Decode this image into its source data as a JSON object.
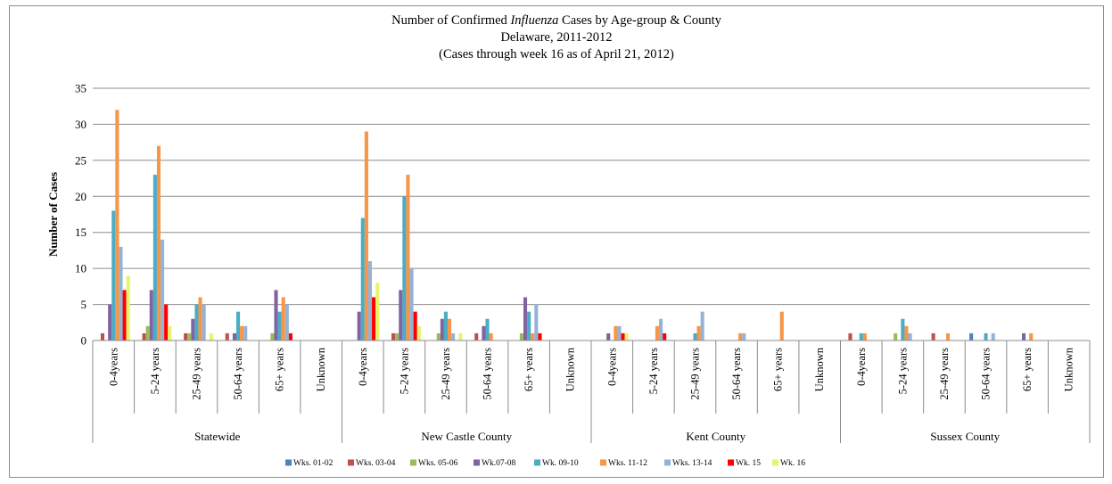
{
  "chart_data": {
    "type": "bar",
    "title_line1_prefix": "Number of Confirmed ",
    "title_line1_italic": "Influenza",
    "title_line1_suffix": " Cases by Age-group & County",
    "title_line2": "Delaware, 2011-2012",
    "title_line3": "(Cases through week 16 as of April 21, 2012)",
    "ylabel": "Number of Cases",
    "ylim": [
      0,
      35
    ],
    "yticks": [
      0,
      5,
      10,
      15,
      20,
      25,
      30,
      35
    ],
    "grid": true,
    "legend_position": "bottom",
    "groups": [
      "Statewide",
      "New Castle County",
      "Kent County",
      "Sussex County"
    ],
    "age_groups": [
      "0-4years",
      "5-24 years",
      "25-49 years",
      "50-64 years",
      "65+ years",
      "Unknown"
    ],
    "categories": [
      "Statewide 0-4years",
      "Statewide 5-24 years",
      "Statewide 25-49 years",
      "Statewide 50-64 years",
      "Statewide 65+ years",
      "Statewide Unknown",
      "New Castle County 0-4years",
      "New Castle County 5-24 years",
      "New Castle County 25-49 years",
      "New Castle County 50-64 years",
      "New Castle County 65+ years",
      "New Castle County Unknown",
      "Kent County 0-4years",
      "Kent County 5-24 years",
      "Kent County 25-49 years",
      "Kent County 50-64 years",
      "Kent County 65+ years",
      "Kent County Unknown",
      "Sussex County 0-4years",
      "Sussex County 5-24 years",
      "Sussex County 25-49 years",
      "Sussex County 50-64 years",
      "Sussex County 65+ years",
      "Sussex County Unknown"
    ],
    "series": [
      {
        "name": "Wks. 01-02",
        "color": "#4f81bd",
        "values": [
          0,
          0,
          0,
          0,
          0,
          0,
          0,
          0,
          0,
          0,
          0,
          0,
          0,
          0,
          0,
          0,
          0,
          0,
          0,
          0,
          0,
          1,
          0,
          0
        ]
      },
      {
        "name": "Wks. 03-04",
        "color": "#c0504d",
        "values": [
          1,
          1,
          1,
          1,
          0,
          0,
          0,
          1,
          0,
          1,
          0,
          0,
          0,
          0,
          0,
          0,
          0,
          0,
          1,
          0,
          1,
          0,
          0,
          0
        ]
      },
      {
        "name": "Wks. 05-06",
        "color": "#9bbb59",
        "values": [
          0,
          2,
          1,
          0,
          1,
          0,
          0,
          1,
          1,
          0,
          1,
          0,
          0,
          0,
          0,
          0,
          0,
          0,
          0,
          1,
          0,
          0,
          0,
          0
        ]
      },
      {
        "name": "Wk.07-08",
        "color": "#8064a2",
        "values": [
          5,
          7,
          3,
          1,
          7,
          0,
          4,
          7,
          3,
          2,
          6,
          0,
          1,
          0,
          0,
          0,
          0,
          0,
          0,
          0,
          0,
          0,
          1,
          0
        ]
      },
      {
        "name": "Wk. 09-10",
        "color": "#4bacc6",
        "values": [
          18,
          23,
          5,
          4,
          4,
          0,
          17,
          20,
          4,
          3,
          4,
          0,
          0,
          0,
          1,
          0,
          0,
          0,
          1,
          3,
          0,
          1,
          0,
          0
        ]
      },
      {
        "name": "Wks. 11-12",
        "color": "#f79646",
        "values": [
          32,
          27,
          6,
          2,
          6,
          0,
          29,
          23,
          3,
          1,
          1,
          0,
          2,
          2,
          2,
          1,
          4,
          0,
          1,
          2,
          1,
          0,
          1,
          0
        ]
      },
      {
        "name": "Wks. 13-14",
        "color": "#95b3d7",
        "values": [
          13,
          14,
          5,
          2,
          5,
          0,
          11,
          10,
          1,
          0,
          5,
          0,
          2,
          3,
          4,
          1,
          0,
          0,
          0,
          1,
          0,
          1,
          0,
          0
        ]
      },
      {
        "name": "Wk. 15",
        "color": "#ff0000",
        "values": [
          7,
          5,
          0,
          0,
          1,
          0,
          6,
          4,
          0,
          0,
          1,
          0,
          1,
          1,
          0,
          0,
          0,
          0,
          0,
          0,
          0,
          0,
          0,
          0
        ]
      },
      {
        "name": "Wk. 16",
        "color": "#e6f56a",
        "values": [
          9,
          2,
          1,
          0,
          0,
          0,
          8,
          2,
          1,
          0,
          0,
          0,
          1,
          0,
          0,
          0,
          0,
          0,
          0,
          0,
          0,
          0,
          0,
          0
        ]
      }
    ]
  }
}
